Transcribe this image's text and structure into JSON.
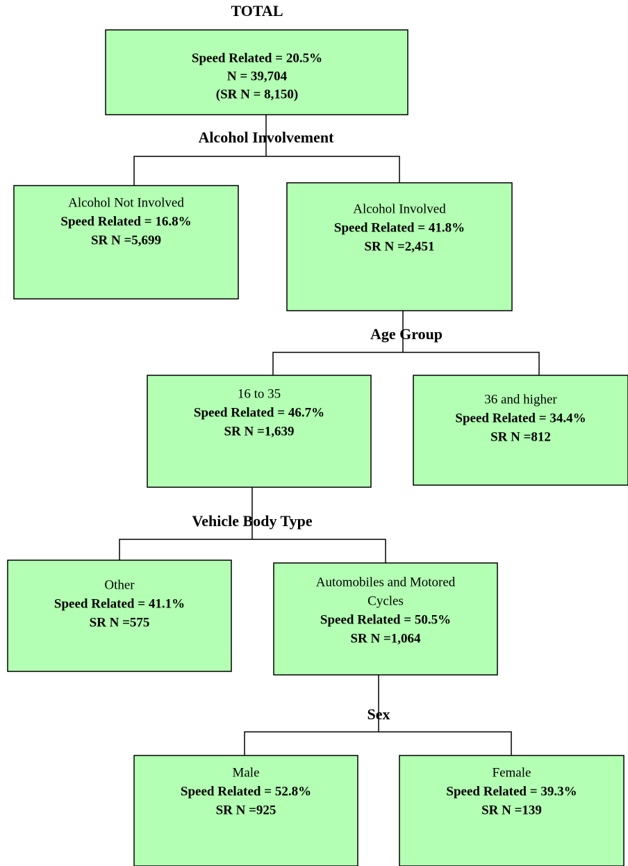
{
  "title": "TOTAL",
  "root": {
    "lines": [
      "Speed Related = 20.5%",
      "N = 39,704",
      "(SR N = 8,150)"
    ]
  },
  "splits": [
    "Alcohol Involvement",
    "Age Group",
    "Vehicle Body Type",
    "Sex"
  ],
  "nodes": [
    {
      "label_lines": [
        "Alcohol Not Involved"
      ],
      "speed_related": "Speed Related = 16.8%",
      "sr_n": "SR N =5,699"
    },
    {
      "label_lines": [
        "Alcohol Involved"
      ],
      "speed_related": "Speed Related = 41.8%",
      "sr_n": "SR N =2,451"
    },
    {
      "label_lines": [
        "16 to 35"
      ],
      "speed_related": "Speed Related = 46.7%",
      "sr_n": "SR N =1,639"
    },
    {
      "label_lines": [
        "36 and higher"
      ],
      "speed_related": "Speed Related = 34.4%",
      "sr_n": "SR N =812"
    },
    {
      "label_lines": [
        "Other"
      ],
      "speed_related": "Speed Related = 41.1%",
      "sr_n": "SR N =575"
    },
    {
      "label_lines": [
        "Automobiles and Motored",
        "Cycles"
      ],
      "speed_related": "Speed Related = 50.5%",
      "sr_n": "SR N =1,064"
    },
    {
      "label_lines": [
        "Male"
      ],
      "speed_related": "Speed Related = 52.8%",
      "sr_n": "SR N =925"
    },
    {
      "label_lines": [
        "Female"
      ],
      "speed_related": "Speed Related = 39.3%",
      "sr_n": "SR N =139"
    }
  ]
}
